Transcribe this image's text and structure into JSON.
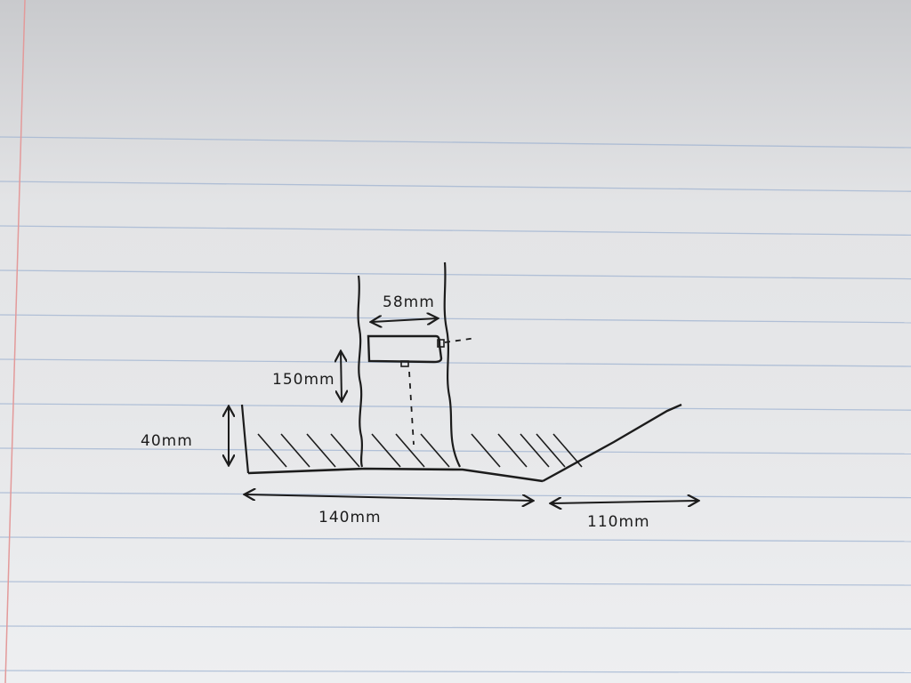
{
  "paper": {
    "line_color": "#9fb3d1",
    "margin_color": "#e39a9a",
    "ink_color": "#1c1c1c"
  },
  "labels": {
    "top_width": "58mm",
    "height_gap": "150mm",
    "wall_height": "40mm",
    "base_length": "140mm",
    "ramp_length": "110mm"
  }
}
